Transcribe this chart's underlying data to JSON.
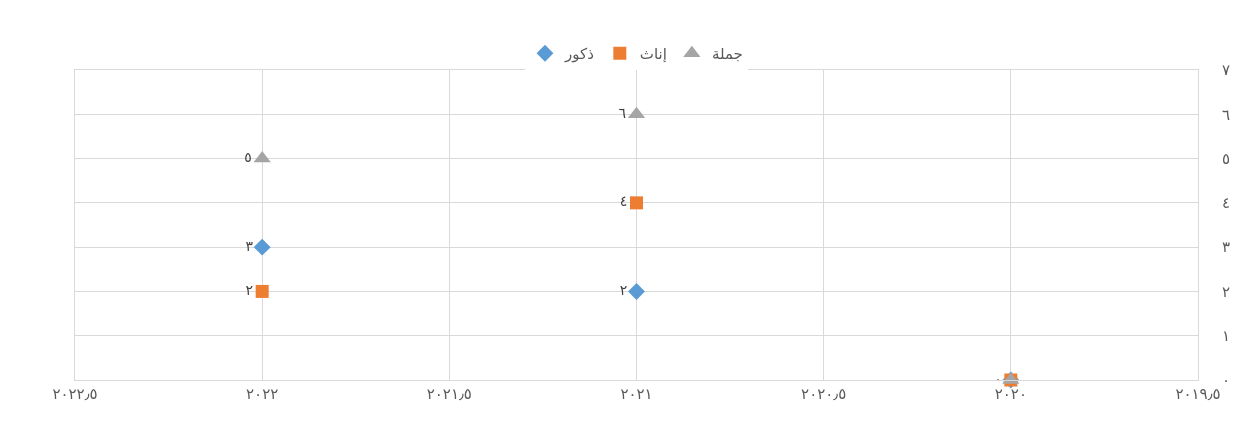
{
  "chart_data": {
    "type": "scatter",
    "x": [
      2020,
      2021,
      2022
    ],
    "series": [
      {
        "name": "ذكور",
        "color": "#5b9bd5",
        "marker": "diamond",
        "values": [
          0,
          2,
          3
        ],
        "value_labels": [
          null,
          "٢",
          "٣"
        ]
      },
      {
        "name": "إناث",
        "color": "#ed7d31",
        "marker": "square",
        "values": [
          0,
          4,
          2
        ],
        "value_labels": [
          "٠",
          "٤",
          "٢"
        ]
      },
      {
        "name": "جملة",
        "color": "#a5a5a5",
        "marker": "triangle",
        "values": [
          0,
          6,
          5
        ],
        "value_labels": [
          null,
          "٦",
          "٥"
        ]
      }
    ],
    "xlim": [
      2022.5,
      2019.5
    ],
    "xticks": [
      {
        "value": 2022.5,
        "label": "٢٠٢٢٫٥"
      },
      {
        "value": 2022,
        "label": "٢٠٢٢"
      },
      {
        "value": 2021.5,
        "label": "٢٠٢١٫٥"
      },
      {
        "value": 2021,
        "label": "٢٠٢١"
      },
      {
        "value": 2020.5,
        "label": "٢٠٢٠٫٥"
      },
      {
        "value": 2020,
        "label": "٢٠٢٠"
      },
      {
        "value": 2019.5,
        "label": "٢٠١٩٫٥"
      }
    ],
    "ylim": [
      0,
      7
    ],
    "yticks": [
      {
        "value": 0,
        "label": "٠"
      },
      {
        "value": 1,
        "label": "١"
      },
      {
        "value": 2,
        "label": "٢"
      },
      {
        "value": 3,
        "label": "٣"
      },
      {
        "value": 4,
        "label": "٤"
      },
      {
        "value": 5,
        "label": "٥"
      },
      {
        "value": 6,
        "label": "٦"
      },
      {
        "value": 7,
        "label": "٧"
      }
    ],
    "grid": true,
    "legend": "top"
  }
}
